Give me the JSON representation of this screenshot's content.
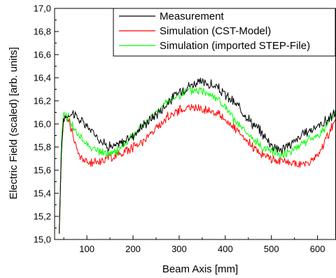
{
  "chart_data": {
    "type": "line",
    "title": "",
    "xlabel": "Beam Axis [mm]",
    "ylabel": "Electric Field (scaled) [arb. units]",
    "xlim": [
      30,
      640
    ],
    "ylim": [
      15.0,
      17.0
    ],
    "x_ticks": [
      100,
      200,
      300,
      400,
      500,
      600
    ],
    "x_tick_labels": [
      "100",
      "200",
      "300",
      "400",
      "500",
      "600"
    ],
    "y_ticks": [
      15.0,
      15.2,
      15.4,
      15.6,
      15.8,
      16.0,
      16.2,
      16.4,
      16.6,
      16.8,
      17.0
    ],
    "y_tick_labels": [
      "15,0",
      "15,2",
      "15,4",
      "15,6",
      "15,8",
      "16,0",
      "16,2",
      "16,4",
      "16,6",
      "16,8",
      "17,0"
    ],
    "grid": false,
    "legend_position": "top-right",
    "series": [
      {
        "name": "Measurement",
        "color": "#000000",
        "x": [
          40,
          45,
          50,
          60,
          70,
          80,
          100,
          120,
          140,
          160,
          180,
          200,
          220,
          240,
          260,
          280,
          300,
          320,
          340,
          360,
          380,
          400,
          420,
          440,
          460,
          480,
          500,
          520,
          540,
          560,
          580,
          600,
          620,
          640
        ],
        "y": [
          15.05,
          15.8,
          16.05,
          16.08,
          16.1,
          16.05,
          15.98,
          15.9,
          15.82,
          15.8,
          15.85,
          15.9,
          15.98,
          16.05,
          16.12,
          16.2,
          16.28,
          16.33,
          16.36,
          16.35,
          16.32,
          16.25,
          16.18,
          16.1,
          16.0,
          15.92,
          15.82,
          15.78,
          15.82,
          15.88,
          15.94,
          15.98,
          16.03,
          16.1
        ]
      },
      {
        "name": "Simulation (CST-Model)",
        "color": "#ff0000",
        "x": [
          40,
          45,
          50,
          60,
          70,
          80,
          100,
          120,
          140,
          160,
          180,
          200,
          220,
          240,
          260,
          280,
          300,
          320,
          340,
          360,
          380,
          400,
          420,
          440,
          460,
          480,
          500,
          520,
          540,
          560,
          580,
          600,
          620,
          640
        ],
        "y": [
          15.05,
          15.8,
          16.05,
          16.05,
          15.9,
          15.75,
          15.66,
          15.67,
          15.7,
          15.72,
          15.76,
          15.8,
          15.85,
          15.92,
          16.0,
          16.08,
          16.12,
          16.14,
          16.14,
          16.12,
          16.1,
          16.04,
          15.96,
          15.87,
          15.8,
          15.74,
          15.7,
          15.68,
          15.66,
          15.65,
          15.66,
          15.72,
          15.88,
          16.05
        ]
      },
      {
        "name": "Simulation (imported STEP-File)",
        "color": "#00ff00",
        "x": [
          40,
          45,
          50,
          60,
          70,
          80,
          100,
          120,
          140,
          160,
          180,
          200,
          220,
          240,
          260,
          280,
          300,
          320,
          340,
          360,
          380,
          400,
          420,
          440,
          460,
          480,
          500,
          520,
          540,
          560,
          580,
          600,
          620,
          640
        ],
        "y": [
          15.05,
          15.9,
          16.08,
          16.06,
          15.98,
          15.9,
          15.83,
          15.77,
          15.74,
          15.75,
          15.82,
          15.9,
          15.98,
          16.06,
          16.14,
          16.2,
          16.25,
          16.28,
          16.29,
          16.28,
          16.23,
          16.14,
          16.03,
          15.94,
          15.86,
          15.8,
          15.77,
          15.74,
          15.76,
          15.82,
          15.86,
          15.9,
          15.98,
          16.12
        ]
      }
    ]
  }
}
